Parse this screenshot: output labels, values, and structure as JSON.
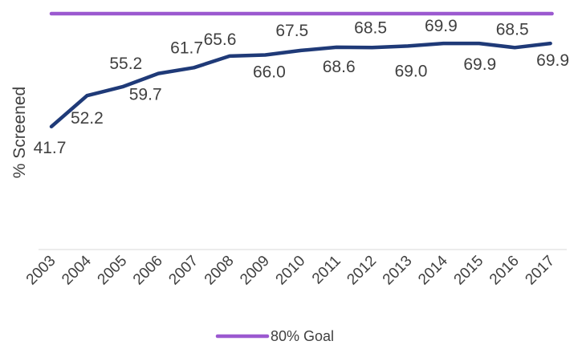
{
  "chart_data": {
    "type": "line",
    "title": "",
    "xlabel": "",
    "ylabel": "% Screened",
    "categories": [
      "2003",
      "2004",
      "2005",
      "2006",
      "2007",
      "2008",
      "2009",
      "2010",
      "2011",
      "2012",
      "2013",
      "2014",
      "2015",
      "2016",
      "2017"
    ],
    "series": [
      {
        "values": [
          41.7,
          52.2,
          55.2,
          59.7,
          61.7,
          65.6,
          66.0,
          67.5,
          68.6,
          68.5,
          69.0,
          69.9,
          69.9,
          68.5,
          69.9
        ],
        "color": "#1f3a78"
      }
    ],
    "data_labels": [
      "41.7",
      "52.2",
      "55.2",
      "59.7",
      "61.7",
      "65.6",
      "66.0",
      "67.5",
      "68.6",
      "68.5",
      "69.0",
      "69.9",
      "69.9",
      "68.5",
      "69.9"
    ],
    "goal": {
      "name": "80% Goal",
      "value": 80,
      "color": "#9b59d0"
    },
    "ylim": [
      0,
      80
    ],
    "grid": false,
    "legend": "bottom"
  }
}
